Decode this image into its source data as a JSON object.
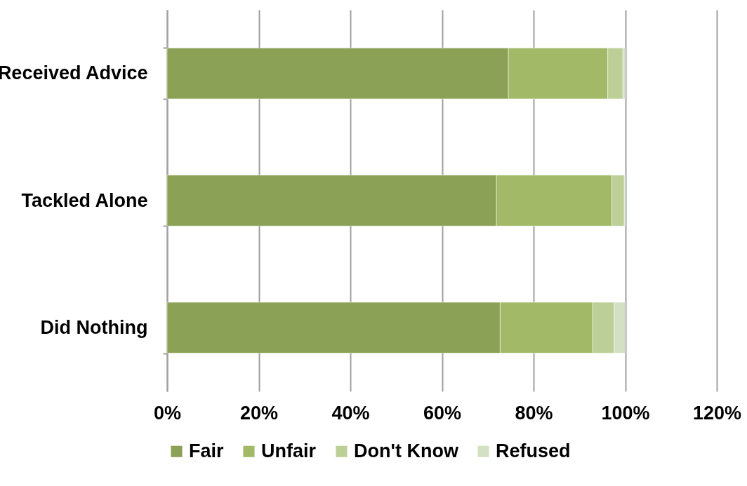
{
  "chart_data": {
    "type": "bar",
    "orientation": "horizontal",
    "stacked": true,
    "categories": [
      "Received Advice",
      "Tackled Alone",
      "Did Nothing"
    ],
    "series": [
      {
        "name": "Fair",
        "color": "#8ba155",
        "values": [
          74.5,
          71.9,
          72.7
        ]
      },
      {
        "name": "Unfair",
        "color": "#a2ba67",
        "values": [
          21.7,
          25.2,
          20.2
        ]
      },
      {
        "name": "Don't Know",
        "color": "#bccf96",
        "values": [
          3.3,
          2.7,
          4.7
        ]
      },
      {
        "name": "Refused",
        "color": "#d4e0c3",
        "values": [
          0.5,
          0.2,
          2.4
        ]
      }
    ],
    "xlim": [
      0,
      120
    ],
    "xticks": [
      {
        "value": 0,
        "label": "0%"
      },
      {
        "value": 20,
        "label": "20%"
      },
      {
        "value": 40,
        "label": "40%"
      },
      {
        "value": 60,
        "label": "60%"
      },
      {
        "value": 80,
        "label": "80%"
      },
      {
        "value": 100,
        "label": "100%"
      },
      {
        "value": 120,
        "label": "120%"
      }
    ],
    "grid": "x",
    "legend": "bottom"
  }
}
